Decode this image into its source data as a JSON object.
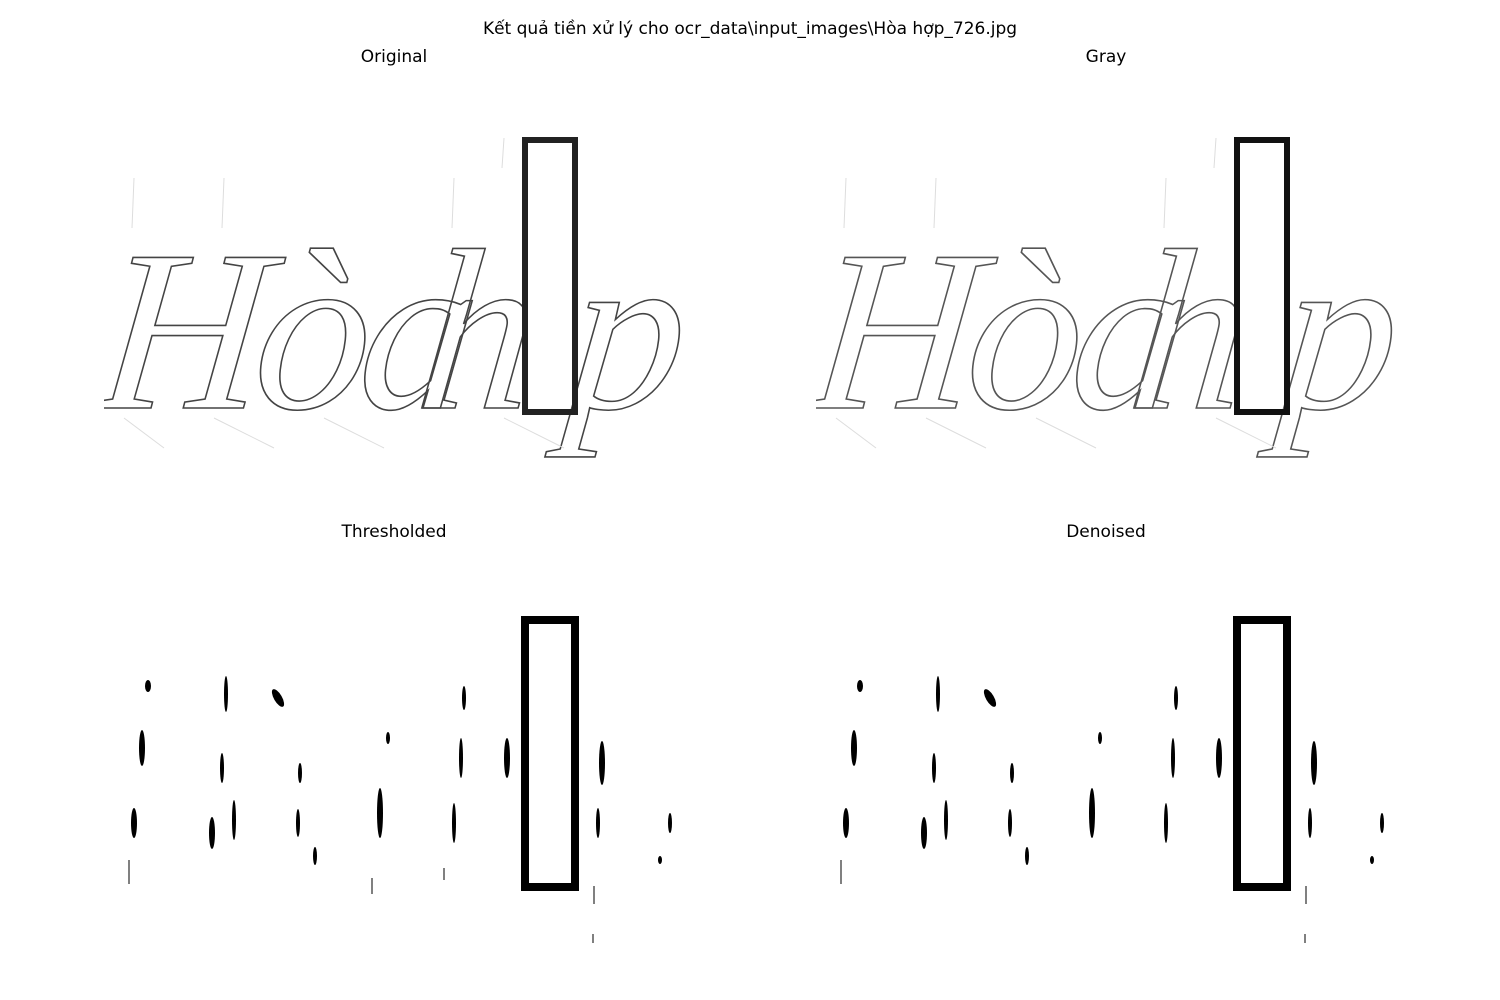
{
  "figure": {
    "title": "Kết quả tiền xử lý cho ocr_data\\input_images\\Hòa hợp_726.jpg"
  },
  "panels": [
    {
      "title": "Original"
    },
    {
      "title": "Gray"
    },
    {
      "title": "Thresholded"
    },
    {
      "title": "Denoised"
    }
  ],
  "image_content": {
    "text_left": "Hòa",
    "text_right_prefix": "h",
    "text_right_suffix": "p"
  }
}
